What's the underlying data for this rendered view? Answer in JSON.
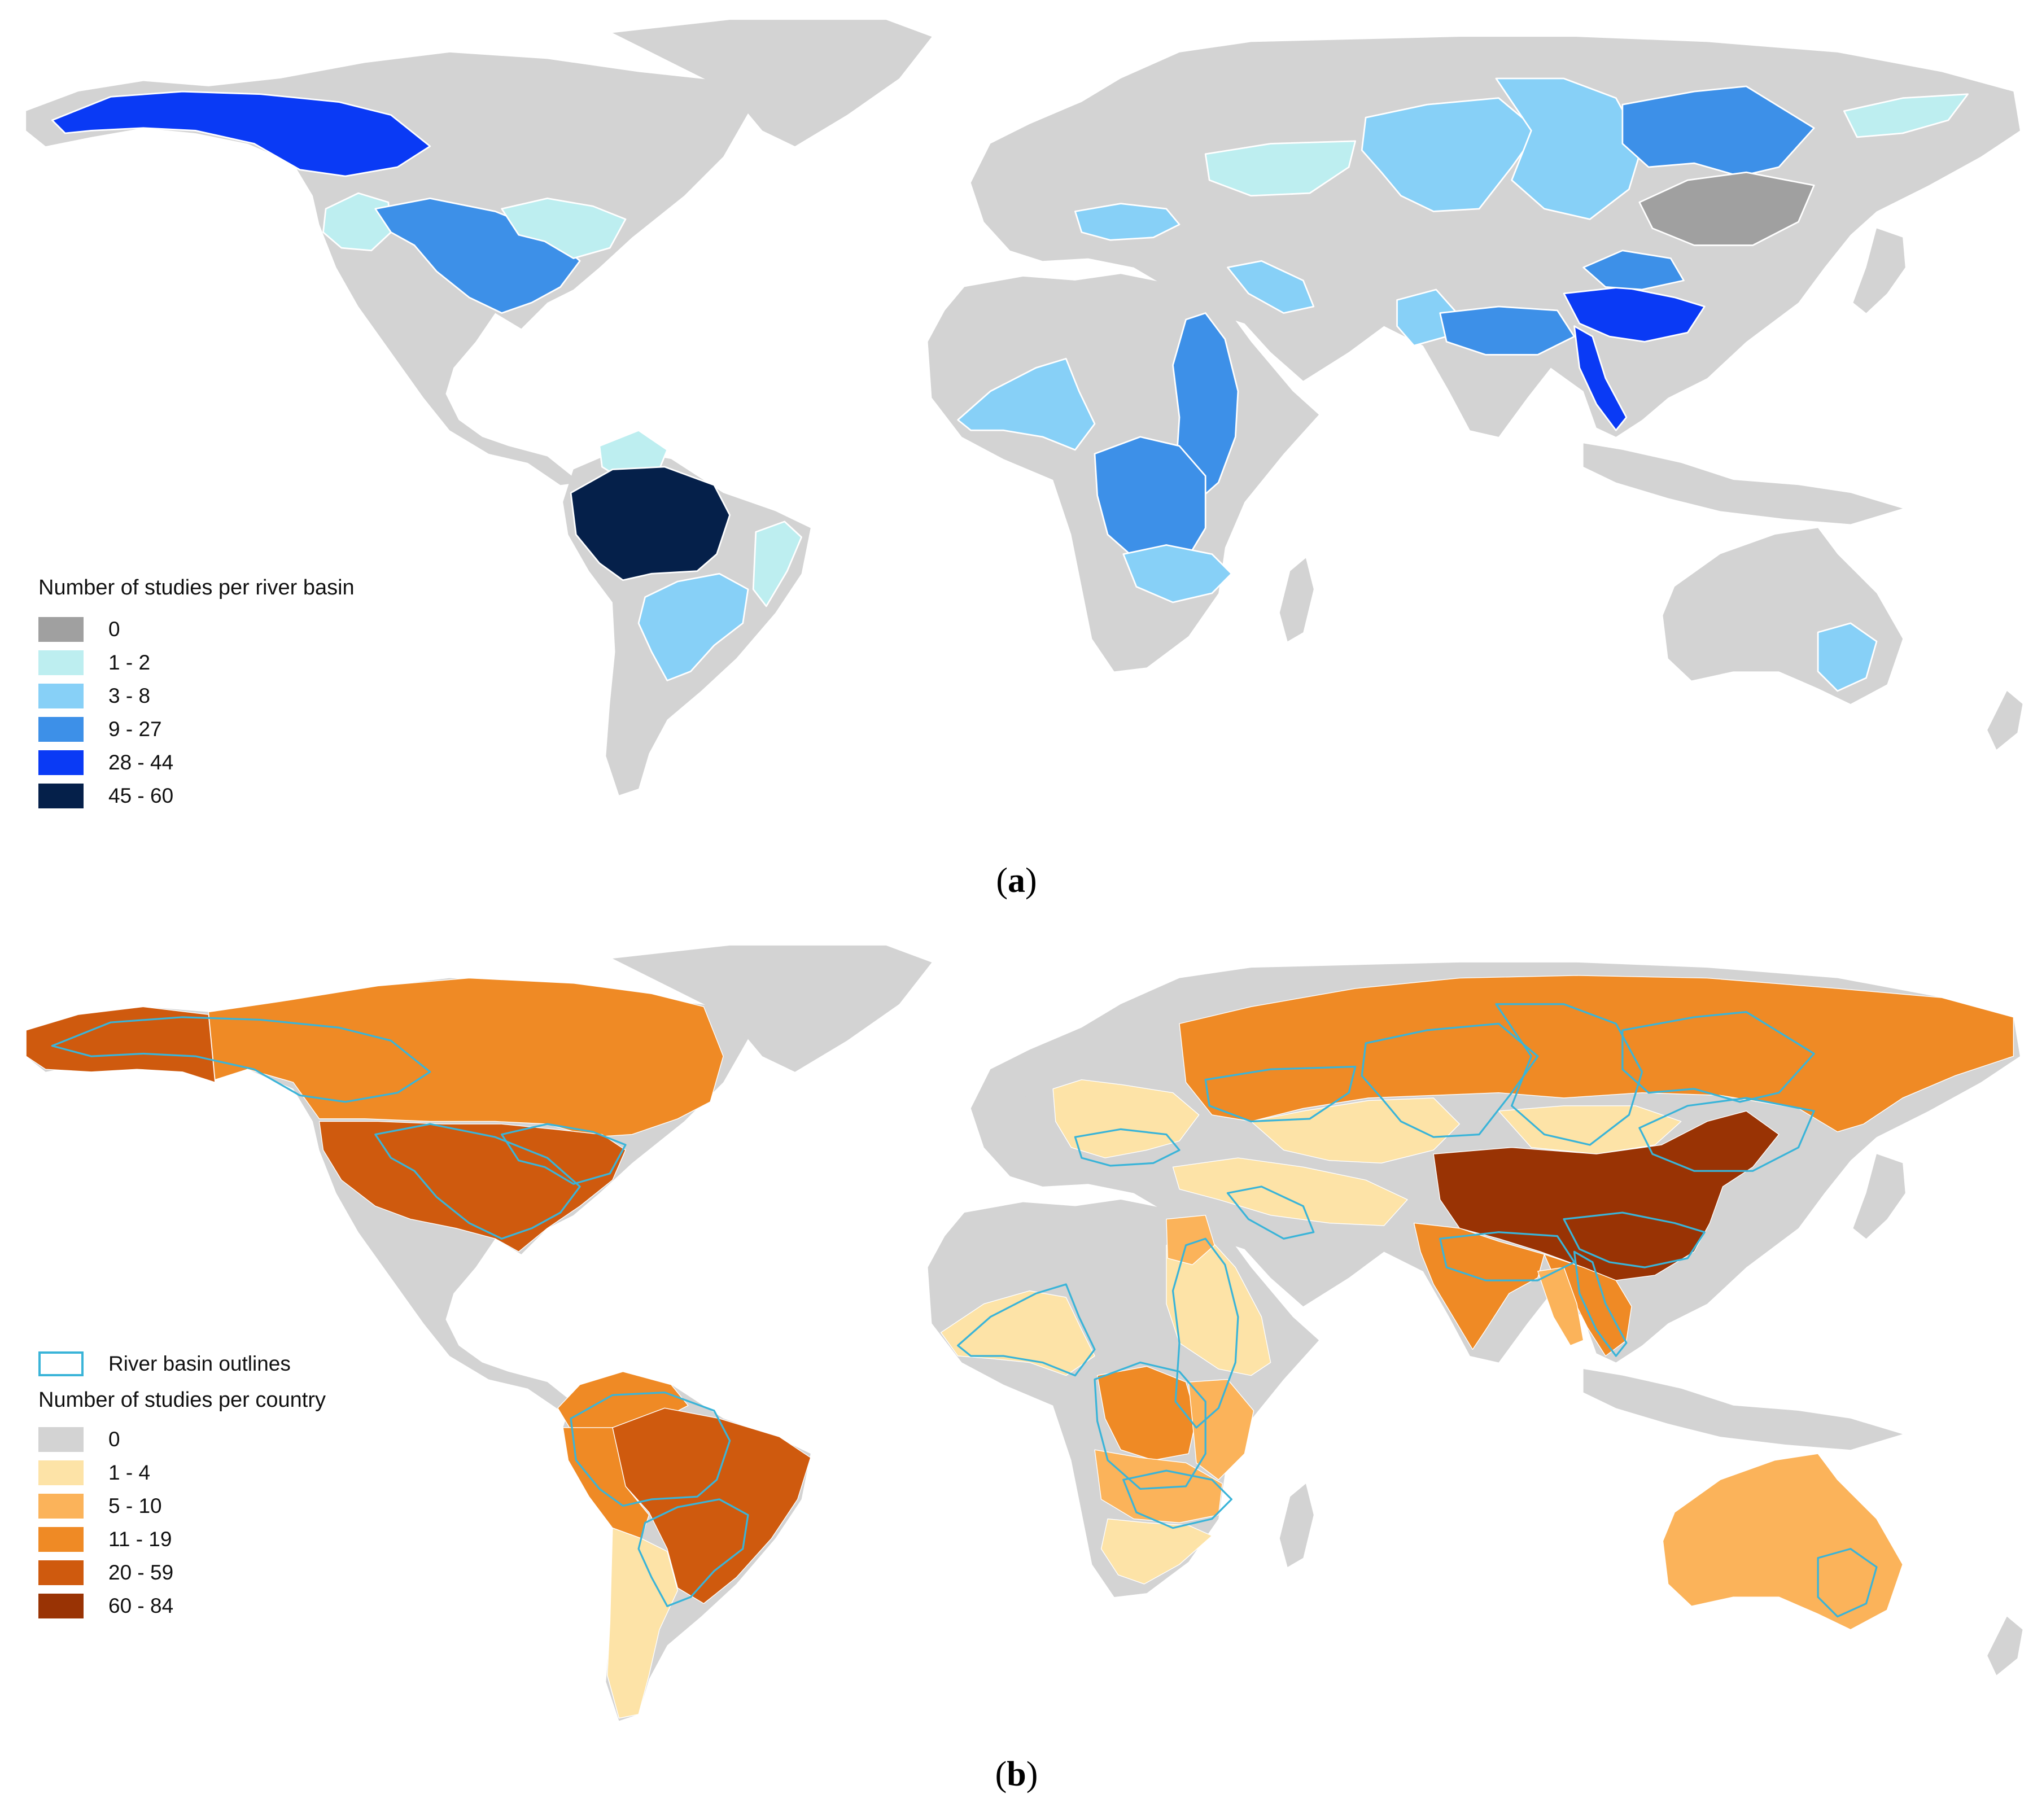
{
  "panel_a": {
    "caption_letter": "a",
    "legend_title": "Number of studies per river basin",
    "legend": [
      {
        "label": "0",
        "color": "#a0a0a0"
      },
      {
        "label": "1 - 2",
        "color": "#bdeef0"
      },
      {
        "label": "3 - 8",
        "color": "#87d0f7"
      },
      {
        "label": "9 - 27",
        "color": "#3d90e8"
      },
      {
        "label": "28 - 44",
        "color": "#0a3af5"
      },
      {
        "label": "45 - 60",
        "color": "#05204a"
      }
    ],
    "land_color": "#d3d3d3"
  },
  "panel_b": {
    "caption_letter": "b",
    "outline_label": "River basin outlines",
    "outline_color": "#3ab4d8",
    "legend_title": "Number of studies per country",
    "legend": [
      {
        "label": "0",
        "color": "#d3d3d3"
      },
      {
        "label": "1 - 4",
        "color": "#fde3a7"
      },
      {
        "label": "5 - 10",
        "color": "#fbb35a"
      },
      {
        "label": "11 - 19",
        "color": "#ef8a25"
      },
      {
        "label": "20 - 59",
        "color": "#cf5a0e"
      },
      {
        "label": "60 - 84",
        "color": "#993304"
      }
    ],
    "land_color": "#d3d3d3"
  }
}
